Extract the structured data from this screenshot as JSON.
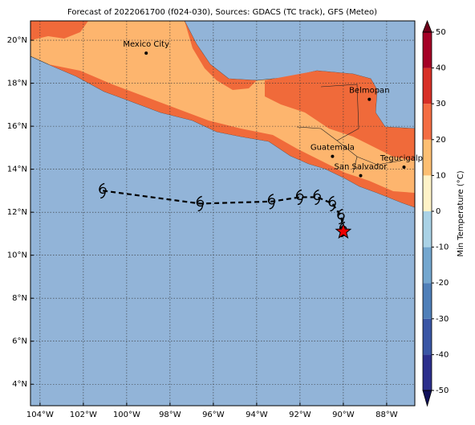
{
  "title": "Forecast of 2022061700 (f024-030), Sources: GDACS (TC track), GFS (Meteo)",
  "map": {
    "xlim": [
      -104.44,
      -86.7
    ],
    "ylim": [
      3.0,
      20.9
    ],
    "xticks": [
      {
        "value": -104,
        "label": "104°W"
      },
      {
        "value": -102,
        "label": "102°W"
      },
      {
        "value": -100,
        "label": "100°W"
      },
      {
        "value": -98,
        "label": "98°W"
      },
      {
        "value": -96,
        "label": "96°W"
      },
      {
        "value": -94,
        "label": "94°W"
      },
      {
        "value": -92,
        "label": "92°W"
      },
      {
        "value": -90,
        "label": "90°W"
      },
      {
        "value": -88,
        "label": "88°W"
      }
    ],
    "yticks": [
      {
        "value": 4,
        "label": "4°N"
      },
      {
        "value": 6,
        "label": "6°N"
      },
      {
        "value": 8,
        "label": "8°N"
      },
      {
        "value": 10,
        "label": "10°N"
      },
      {
        "value": 12,
        "label": "12°N"
      },
      {
        "value": 14,
        "label": "14°N"
      },
      {
        "value": 16,
        "label": "16°N"
      },
      {
        "value": 18,
        "label": "18°N"
      },
      {
        "value": 20,
        "label": "20°N"
      }
    ],
    "grid": true,
    "cities": [
      {
        "name": "Mexico City",
        "lon": -99.1,
        "lat": 19.4
      },
      {
        "name": "Belmopan",
        "lon": -88.8,
        "lat": 17.25
      },
      {
        "name": "Guatemala",
        "lon": -90.5,
        "lat": 14.6
      },
      {
        "name": "San Salvador",
        "lon": -89.2,
        "lat": 13.7
      },
      {
        "name": "Tegucigalpa",
        "lon": -87.2,
        "lat": 14.1
      }
    ],
    "track": {
      "lon": [
        -101.1,
        -96.6,
        -93.3,
        -92.0,
        -91.2,
        -90.5,
        -90.1,
        -90.0
      ],
      "lat": [
        13.0,
        12.4,
        12.5,
        12.7,
        12.7,
        12.4,
        11.8,
        11.2
      ]
    },
    "position": {
      "lon": -90.0,
      "lat": 11.1
    }
  },
  "colorbar": {
    "label": "Min Temperature (°C)",
    "ylim": [
      -50,
      50
    ],
    "ticks": [
      -50,
      -40,
      -30,
      -20,
      -10,
      0,
      10,
      20,
      30,
      40,
      50
    ],
    "colors": [
      "#2c2f8c",
      "#3a56a5",
      "#4f7fb9",
      "#74a7cf",
      "#aad2e6",
      "#fff3c8",
      "#fdbf72",
      "#f46d43",
      "#d73027",
      "#a50026"
    ]
  }
}
